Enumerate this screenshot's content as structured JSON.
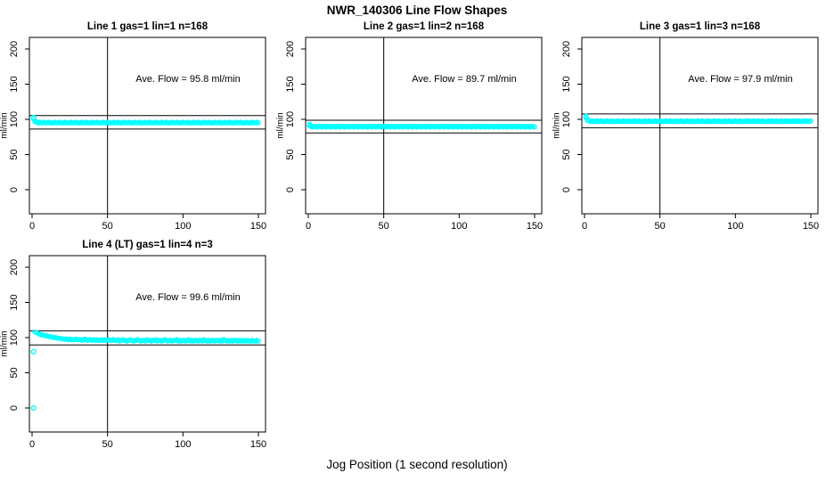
{
  "page": {
    "main_title": "NWR_140306  Line Flow Shapes",
    "x_axis_label": "Jog Position (1 second resolution)"
  },
  "colors": {
    "point": "#00ffff",
    "axis": "#000000",
    "background": "#ffffff"
  },
  "chart_data": [
    {
      "type": "scatter",
      "title": "Line 1 gas=1 lin=1 n=168",
      "ylabel": "ml/min",
      "annotation": "Ave. Flow =  95.8  ml/min",
      "ave_flow": 95.8,
      "xlim": [
        0,
        150
      ],
      "ylim": [
        0,
        200
      ],
      "x_ticks": [
        0,
        50,
        100,
        150
      ],
      "y_ticks": [
        0,
        50,
        100,
        150,
        200
      ],
      "vline_x": 50,
      "hlines": [
        105.4,
        86.2
      ],
      "x_start": 1,
      "x_step": 1,
      "y_values": [
        103,
        98,
        96,
        95,
        96,
        95,
        95,
        96,
        95,
        95,
        96,
        95,
        95,
        95,
        96,
        95,
        95,
        96,
        95,
        95,
        95,
        96,
        95,
        95,
        95,
        96,
        95,
        95,
        96,
        95,
        95,
        95,
        96,
        95,
        95,
        96,
        95,
        95,
        95,
        96,
        95,
        95,
        96,
        95,
        95,
        95,
        96,
        95,
        95,
        96,
        95,
        95,
        95,
        96,
        95,
        95,
        96,
        95,
        95,
        95,
        96,
        95,
        95,
        96,
        95,
        95,
        95,
        96,
        95,
        95,
        96,
        95,
        95,
        95,
        96,
        95,
        95,
        96,
        95,
        95,
        95,
        96,
        95,
        95,
        95,
        96,
        95,
        95,
        96,
        95,
        95,
        95,
        96,
        95,
        95,
        96,
        95,
        95,
        95,
        96,
        95,
        95,
        96,
        95,
        95,
        95,
        96,
        95,
        95,
        96,
        95,
        95,
        95,
        96,
        95,
        95,
        96,
        95,
        95,
        95,
        96,
        95,
        95,
        96,
        95,
        95,
        95,
        96,
        95,
        95,
        96,
        95,
        95,
        95,
        96,
        95,
        95,
        96,
        95,
        95,
        95,
        96,
        95,
        95,
        95,
        96,
        95,
        95,
        96,
        95
      ],
      "extra_points": [
        [
          1,
          101
        ],
        [
          2,
          97
        ]
      ]
    },
    {
      "type": "scatter",
      "title": "Line 2 gas=1 lin=2 n=168",
      "ylabel": "ml/min",
      "annotation": "Ave. Flow =  89.7  ml/min",
      "ave_flow": 89.7,
      "xlim": [
        0,
        150
      ],
      "ylim": [
        0,
        200
      ],
      "x_ticks": [
        0,
        50,
        100,
        150
      ],
      "y_ticks": [
        0,
        50,
        100,
        150,
        200
      ],
      "vline_x": 50,
      "hlines": [
        98.7,
        80.7
      ],
      "x_start": 1,
      "x_step": 1,
      "y_values": [
        93,
        90,
        89,
        90,
        90,
        89,
        90,
        90,
        89,
        90,
        90,
        89,
        90,
        90,
        89,
        90,
        90,
        89,
        90,
        90,
        89,
        90,
        90,
        89,
        90,
        90,
        89,
        90,
        90,
        89,
        90,
        90,
        89,
        90,
        90,
        89,
        90,
        90,
        89,
        90,
        90,
        89,
        90,
        90,
        89,
        90,
        90,
        89,
        90,
        90,
        89,
        90,
        90,
        89,
        90,
        90,
        89,
        90,
        90,
        89,
        90,
        90,
        89,
        90,
        90,
        89,
        90,
        90,
        89,
        90,
        90,
        89,
        90,
        90,
        89,
        90,
        90,
        89,
        90,
        90,
        89,
        90,
        90,
        89,
        90,
        90,
        89,
        90,
        90,
        89,
        90,
        90,
        89,
        90,
        90,
        89,
        90,
        90,
        89,
        90,
        90,
        89,
        90,
        90,
        89,
        90,
        90,
        89,
        90,
        90,
        89,
        90,
        90,
        89,
        90,
        90,
        89,
        90,
        90,
        89,
        90,
        90,
        89,
        90,
        90,
        89,
        90,
        90,
        89,
        90,
        90,
        89,
        90,
        90,
        89,
        90,
        90,
        89,
        90,
        90,
        89,
        90,
        90,
        89,
        90,
        90,
        89,
        90,
        90,
        89
      ],
      "extra_points": [
        [
          1,
          91
        ]
      ]
    },
    {
      "type": "scatter",
      "title": "Line 3 gas=1 lin=3 n=168",
      "ylabel": "ml/min",
      "annotation": "Ave. Flow =  97.9  ml/min",
      "ave_flow": 97.9,
      "xlim": [
        0,
        150
      ],
      "ylim": [
        0,
        200
      ],
      "x_ticks": [
        0,
        50,
        100,
        150
      ],
      "y_ticks": [
        0,
        50,
        100,
        150,
        200
      ],
      "vline_x": 50,
      "hlines": [
        107.7,
        88.1
      ],
      "x_start": 1,
      "x_step": 1,
      "y_values": [
        105,
        100,
        98,
        97,
        98,
        97,
        97,
        98,
        97,
        97,
        98,
        97,
        97,
        97,
        98,
        97,
        97,
        98,
        97,
        97,
        97,
        98,
        97,
        97,
        97,
        98,
        97,
        97,
        98,
        97,
        97,
        97,
        98,
        97,
        97,
        98,
        97,
        97,
        97,
        98,
        97,
        97,
        98,
        97,
        97,
        97,
        98,
        97,
        97,
        98,
        97,
        97,
        97,
        98,
        97,
        97,
        98,
        97,
        97,
        97,
        98,
        97,
        97,
        98,
        97,
        97,
        97,
        98,
        97,
        97,
        98,
        97,
        97,
        97,
        98,
        97,
        97,
        98,
        97,
        97,
        97,
        98,
        97,
        97,
        97,
        98,
        97,
        97,
        98,
        97,
        97,
        97,
        98,
        97,
        97,
        98,
        97,
        97,
        97,
        98,
        97,
        97,
        98,
        97,
        97,
        97,
        98,
        97,
        98,
        97,
        97,
        98,
        97,
        97,
        98,
        97,
        97,
        98,
        97,
        97,
        97,
        98,
        97,
        98,
        97,
        97,
        98,
        97,
        97,
        98,
        97,
        97,
        98,
        97,
        98,
        97,
        97,
        98,
        97,
        98,
        97,
        98,
        97,
        97,
        98,
        97,
        98,
        97,
        97,
        98
      ],
      "extra_points": [
        [
          1,
          103
        ],
        [
          2,
          99
        ]
      ]
    },
    {
      "type": "scatter",
      "title": "Line 4 (LT) gas=1 lin=4 n=3",
      "ylabel": "ml/min",
      "annotation": "Ave. Flow =  99.6  ml/min",
      "ave_flow": 99.6,
      "xlim": [
        0,
        150
      ],
      "ylim": [
        0,
        200
      ],
      "x_ticks": [
        0,
        50,
        100,
        150
      ],
      "y_ticks": [
        0,
        50,
        100,
        150,
        200
      ],
      "vline_x": 50,
      "hlines": [
        109.6,
        89.6
      ],
      "x_start": 2,
      "x_step": 1,
      "y_values": [
        108,
        107,
        106,
        105,
        104,
        104,
        103,
        103,
        102,
        102,
        101,
        101,
        100,
        100,
        100,
        99,
        99,
        99,
        98,
        98,
        98,
        98,
        97,
        98,
        97,
        97,
        97,
        98,
        97,
        97,
        97,
        96,
        97,
        98,
        97,
        96,
        97,
        97,
        96,
        97,
        96,
        97,
        96,
        96,
        97,
        96,
        97,
        96,
        96,
        97,
        96,
        96,
        97,
        96,
        96,
        97,
        95,
        96,
        97,
        96,
        96,
        95,
        96,
        97,
        96,
        95,
        96,
        96,
        97,
        96,
        95,
        96,
        96,
        95,
        97,
        96,
        96,
        95,
        96,
        96,
        97,
        95,
        96,
        96,
        95,
        96,
        97,
        96,
        95,
        96,
        96,
        95,
        96,
        96,
        97,
        95,
        96,
        95,
        96,
        96,
        95,
        96,
        97,
        95,
        96,
        95,
        96,
        96,
        95,
        96,
        96,
        95,
        97,
        96,
        95,
        96,
        95,
        96,
        96,
        95,
        96,
        96,
        95,
        96,
        95,
        97,
        96,
        95,
        96,
        95,
        96,
        95,
        96,
        96,
        95,
        96,
        95,
        96,
        95,
        96,
        95,
        96,
        95,
        95,
        96,
        95,
        95,
        96,
        95
      ],
      "extra_points": [
        [
          1,
          0
        ],
        [
          1,
          80
        ]
      ]
    }
  ]
}
